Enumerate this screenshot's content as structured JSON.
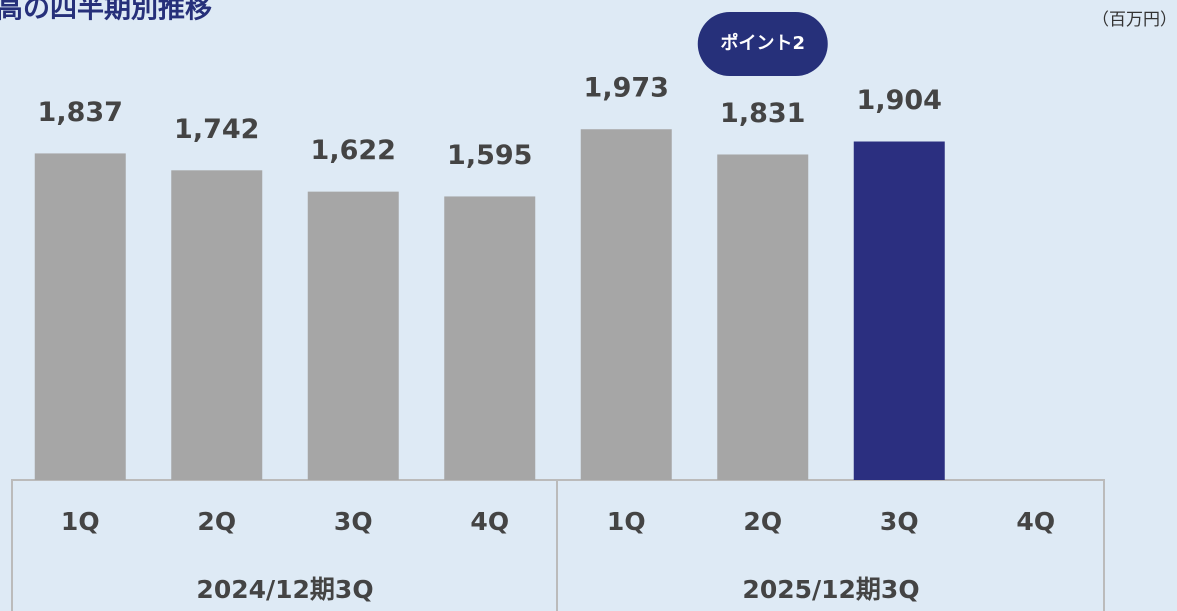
{
  "chart_data": {
    "type": "bar",
    "title": "高の四半期別推移",
    "unit_label": "（百万円）",
    "annotation": {
      "text": "ポイント2",
      "category_index": 5,
      "color": "#26307a"
    },
    "categories": [
      "1Q",
      "2Q",
      "3Q",
      "4Q",
      "1Q",
      "2Q",
      "3Q",
      "4Q"
    ],
    "groups": [
      "2024/12期3Q",
      "2025/12期3Q"
    ],
    "values": [
      1837,
      1742,
      1622,
      1595,
      1973,
      1831,
      1904,
      null
    ],
    "value_labels": [
      "1,837",
      "1,742",
      "1,622",
      "1,595",
      "1,973",
      "1,831",
      "1,904",
      null
    ],
    "colors": [
      "#a6a6a6",
      "#a6a6a6",
      "#a6a6a6",
      "#a6a6a6",
      "#a6a6a6",
      "#a6a6a6",
      "#2b2f80",
      "#a6a6a6"
    ],
    "ylim": [
      0,
      2700
    ]
  }
}
